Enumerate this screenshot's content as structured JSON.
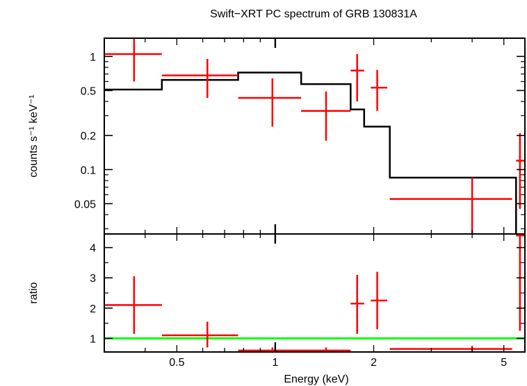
{
  "chart_data": [
    {
      "type": "scatter",
      "title": "Swift−XRT PC spectrum of GRB 130831A",
      "xlabel": "",
      "ylabel": "counts s⁻¹ keV⁻¹",
      "xscale": "log",
      "yscale": "log",
      "xlim": [
        0.3,
        5.8
      ],
      "ylim": [
        0.027,
        1.45
      ],
      "yticks": [
        0.05,
        0.1,
        0.2,
        0.5,
        1
      ],
      "ytick_labels": [
        "0.05",
        "0.1",
        "0.2",
        "0.5",
        "1"
      ],
      "grid": false,
      "data_color": "#ff0000",
      "model_color": "#000000",
      "series": [
        {
          "points": [
            {
              "x": 0.37,
              "xlo": 0.3,
              "xhi": 0.45,
              "y": 1.05,
              "ylo": 0.6,
              "yhi": 1.45
            },
            {
              "x": 0.62,
              "xlo": 0.45,
              "xhi": 0.77,
              "y": 0.68,
              "ylo": 0.43,
              "yhi": 0.95
            },
            {
              "x": 0.98,
              "xlo": 0.77,
              "xhi": 1.2,
              "y": 0.43,
              "ylo": 0.24,
              "yhi": 0.64
            },
            {
              "x": 1.43,
              "xlo": 1.2,
              "xhi": 1.7,
              "y": 0.33,
              "ylo": 0.18,
              "yhi": 0.49
            },
            {
              "x": 1.78,
              "xlo": 1.7,
              "xhi": 1.87,
              "y": 0.75,
              "ylo": 0.4,
              "yhi": 1.05
            },
            {
              "x": 2.05,
              "xlo": 1.96,
              "xhi": 2.2,
              "y": 0.53,
              "ylo": 0.33,
              "yhi": 0.76
            },
            {
              "x": 4.0,
              "xlo": 2.24,
              "xhi": 5.3,
              "y": 0.055,
              "ylo": 0.027,
              "yhi": 0.085
            },
            {
              "x": 5.6,
              "xlo": 5.45,
              "xhi": 5.8,
              "y": 0.12,
              "ylo": 0.045,
              "yhi": 0.21
            }
          ]
        },
        {
          "step": [
            [
              0.3,
              0.51
            ],
            [
              0.45,
              0.62
            ],
            [
              0.77,
              0.72
            ],
            [
              1.2,
              0.57
            ],
            [
              1.7,
              0.34
            ],
            [
              1.87,
              0.24
            ],
            [
              2.24,
              0.085
            ],
            [
              5.45,
              0.027
            ]
          ]
        }
      ]
    },
    {
      "type": "scatter",
      "xlabel": "Energy (keV)",
      "ylabel": "ratio",
      "xscale": "log",
      "xlim": [
        0.3,
        5.8
      ],
      "ylim": [
        0.55,
        4.45
      ],
      "xticks": [
        0.5,
        1,
        2,
        5
      ],
      "xtick_labels": [
        "0.5",
        "1",
        "2",
        "5"
      ],
      "yticks": [
        1,
        2,
        3,
        4
      ],
      "ytick_labels": [
        "1",
        "2",
        "3",
        "4"
      ],
      "grid": false,
      "data_color": "#ff0000",
      "reference_color": "#00ff00",
      "reference_y": 1,
      "series": [
        {
          "points": [
            {
              "x": 0.37,
              "xlo": 0.3,
              "xhi": 0.45,
              "y": 2.1,
              "ylo": 1.15,
              "yhi": 3.05
            },
            {
              "x": 0.62,
              "xlo": 0.45,
              "xhi": 0.77,
              "y": 1.1,
              "ylo": 0.7,
              "yhi": 1.55
            },
            {
              "x": 0.98,
              "xlo": 0.77,
              "xhi": 1.2,
              "y": 0.6,
              "ylo": 0.55,
              "yhi": 0.7
            },
            {
              "x": 1.43,
              "xlo": 1.2,
              "xhi": 1.7,
              "y": 0.6,
              "ylo": 0.55,
              "yhi": 0.7
            },
            {
              "x": 1.78,
              "xlo": 1.7,
              "xhi": 1.87,
              "y": 2.15,
              "ylo": 1.15,
              "yhi": 3.1
            },
            {
              "x": 2.05,
              "xlo": 1.96,
              "xhi": 2.2,
              "y": 2.25,
              "ylo": 1.3,
              "yhi": 3.2
            },
            {
              "x": 4.0,
              "xlo": 2.24,
              "xhi": 5.3,
              "y": 0.65,
              "ylo": 0.58,
              "yhi": 0.75
            },
            {
              "x": 5.6,
              "xlo": 5.45,
              "xhi": 5.8,
              "y": 4.4,
              "ylo": 1.25,
              "yhi": 4.45
            }
          ]
        }
      ]
    }
  ]
}
